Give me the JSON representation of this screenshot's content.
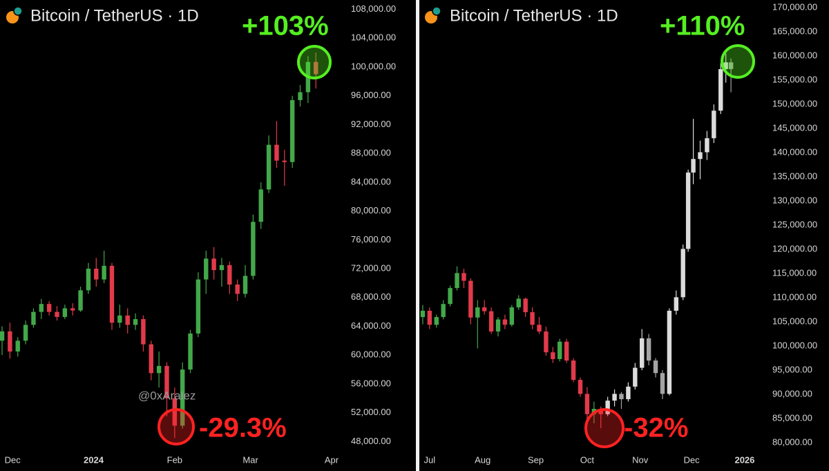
{
  "chart_data": [
    {
      "type": "candlestick",
      "title": "Bitcoin / TetherUS · 1D",
      "watermark": "@0xAralez",
      "annotations": [
        {
          "text": "+103%",
          "color": "#55ee22"
        },
        {
          "text": "-29.3%",
          "color": "#ff2222"
        }
      ],
      "xlim": [
        -4.8,
        127.3
      ],
      "xticks": [
        {
          "value": 0,
          "label": "Dec"
        },
        {
          "value": 31,
          "label": "2024"
        },
        {
          "value": 62,
          "label": "Feb"
        },
        {
          "value": 91,
          "label": "Mar"
        },
        {
          "value": 122,
          "label": "Apr"
        }
      ],
      "ylim": [
        46500,
        109300
      ],
      "yticks": [
        {
          "value": 48000,
          "label": "48,000.00"
        },
        {
          "value": 52000,
          "label": "52,000.00"
        },
        {
          "value": 56000,
          "label": "56,000.00"
        },
        {
          "value": 60000,
          "label": "60,000.00"
        },
        {
          "value": 64000,
          "label": "64,000.00"
        },
        {
          "value": 68000,
          "label": "68,000.00"
        },
        {
          "value": 72000,
          "label": "72,000.00"
        },
        {
          "value": 76000,
          "label": "76,000.00"
        },
        {
          "value": 80000,
          "label": "80,000.00"
        },
        {
          "value": 84000,
          "label": "84,000.00"
        },
        {
          "value": 88000,
          "label": "88,000.00"
        },
        {
          "value": 92000,
          "label": "92,000.00"
        },
        {
          "value": 96000,
          "label": "96,000.00"
        },
        {
          "value": 100000,
          "label": "100,000.00"
        },
        {
          "value": 104000,
          "label": "104,000.00"
        },
        {
          "value": 108000,
          "label": "108,000.00"
        }
      ],
      "series": [
        {
          "up_color": "#43a84a",
          "down_color": "#e23a4b",
          "x": [
            -4,
            -1,
            2,
            5,
            8,
            11,
            14,
            17,
            20,
            23,
            26,
            29,
            32,
            35,
            38,
            41,
            44,
            47,
            50,
            53,
            56,
            59,
            62,
            65,
            68,
            71,
            74,
            77,
            80,
            83,
            86,
            89,
            92,
            95,
            98,
            101,
            104,
            107,
            110,
            113,
            116
          ],
          "open": [
            62000,
            63300,
            60500,
            62000,
            64200,
            66000,
            67100,
            66000,
            65300,
            66500,
            66200,
            69000,
            72000,
            70500,
            72400,
            64500,
            65500,
            64200,
            65000,
            61500,
            57500,
            58500,
            54000,
            50200,
            58000,
            63000,
            70500,
            73400,
            71800,
            72500,
            69800,
            68500,
            71000,
            78500,
            83000,
            89200,
            87000,
            86800,
            95400,
            96500,
            100700
          ],
          "high": [
            64000,
            64500,
            62500,
            64800,
            66500,
            67800,
            67500,
            66800,
            67000,
            67200,
            69500,
            72800,
            73500,
            74500,
            72800,
            67000,
            66500,
            65800,
            65500,
            62000,
            60500,
            59000,
            55500,
            59000,
            63500,
            71500,
            74500,
            75000,
            73500,
            73000,
            70500,
            72500,
            79500,
            84000,
            90500,
            92500,
            88500,
            96000,
            97500,
            101500,
            102000
          ],
          "low": [
            60000,
            59500,
            59800,
            61500,
            63800,
            65000,
            65500,
            64800,
            65000,
            65500,
            66000,
            68500,
            69500,
            70000,
            63500,
            63800,
            63000,
            63500,
            60500,
            56500,
            55500,
            51500,
            48500,
            49800,
            57500,
            62500,
            68500,
            70500,
            69500,
            68500,
            67500,
            68000,
            70500,
            77500,
            82500,
            86000,
            83500,
            86000,
            94500,
            95000,
            97000
          ],
          "close": [
            63300,
            60500,
            62000,
            64200,
            66000,
            67100,
            66000,
            65300,
            66500,
            66200,
            69000,
            72000,
            70500,
            72400,
            64500,
            65500,
            64200,
            65000,
            61500,
            57500,
            58500,
            54000,
            50200,
            58000,
            63000,
            70500,
            73400,
            71800,
            72500,
            69800,
            68500,
            71000,
            78500,
            83000,
            89200,
            87000,
            86800,
            95400,
            96500,
            100700,
            99000
          ]
        }
      ]
    },
    {
      "type": "candlestick",
      "title": "Bitcoin / TetherUS · 1D",
      "annotations": [
        {
          "text": "+110%",
          "color": "#55ee22"
        },
        {
          "text": "-32%",
          "color": "#ff2222"
        }
      ],
      "xlim": [
        -6,
        192.9
      ],
      "xticks": [
        {
          "value": 0,
          "label": "Jul"
        },
        {
          "value": 31,
          "label": "Aug"
        },
        {
          "value": 62,
          "label": "Sep"
        },
        {
          "value": 92,
          "label": "Oct"
        },
        {
          "value": 123,
          "label": "Nov"
        },
        {
          "value": 153,
          "label": "Dec"
        },
        {
          "value": 184,
          "label": "2026"
        }
      ],
      "ylim": [
        78000,
        171600
      ],
      "yticks": [
        {
          "value": 80000,
          "label": "80,000.00"
        },
        {
          "value": 85000,
          "label": "85,000.00"
        },
        {
          "value": 90000,
          "label": "90,000.00"
        },
        {
          "value": 95000,
          "label": "95,000.00"
        },
        {
          "value": 100000,
          "label": "100,000.00"
        },
        {
          "value": 105000,
          "label": "105,000.00"
        },
        {
          "value": 110000,
          "label": "110,000.00"
        },
        {
          "value": 115000,
          "label": "115,000.00"
        },
        {
          "value": 120000,
          "label": "120,000.00"
        },
        {
          "value": 125000,
          "label": "125,000.00"
        },
        {
          "value": 130000,
          "label": "130,000.00"
        },
        {
          "value": 135000,
          "label": "135,000.00"
        },
        {
          "value": 140000,
          "label": "140,000.00"
        },
        {
          "value": 145000,
          "label": "145,000.00"
        },
        {
          "value": 150000,
          "label": "150,000.00"
        },
        {
          "value": 155000,
          "label": "155,000.00"
        },
        {
          "value": 160000,
          "label": "160,000.00"
        },
        {
          "value": 165000,
          "label": "165,000.00"
        },
        {
          "value": 170000,
          "label": "170,000.00"
        }
      ],
      "series": [
        {
          "up_color": "#43a84a",
          "down_color": "#e23a4b",
          "x": [
            -4,
            0,
            4,
            8,
            12,
            16,
            20,
            24,
            28,
            32,
            36,
            40,
            44,
            48,
            52,
            56,
            60,
            64,
            68,
            72,
            76,
            80,
            84,
            88,
            92,
            96,
            100
          ],
          "open": [
            106000,
            107300,
            104400,
            106000,
            108700,
            112000,
            115100,
            113500,
            105900,
            108000,
            107200,
            103000,
            105500,
            104400,
            108000,
            109800,
            107000,
            104400,
            103000,
            98700,
            97300,
            100900,
            97000,
            93000,
            90100,
            85900,
            87000
          ],
          "high": [
            108500,
            108000,
            106500,
            109500,
            112500,
            116500,
            116000,
            114000,
            109500,
            109500,
            108000,
            106000,
            106500,
            108500,
            110500,
            110000,
            108000,
            106000,
            104000,
            99800,
            101500,
            101500,
            97500,
            93500,
            91500,
            88500,
            87500
          ],
          "low": [
            104500,
            103500,
            103800,
            105500,
            108200,
            111500,
            112000,
            104500,
            99500,
            106500,
            102500,
            102000,
            103500,
            104000,
            107500,
            106000,
            103500,
            102500,
            98000,
            96500,
            96800,
            96500,
            92500,
            89500,
            85000,
            84000,
            83000
          ],
          "close": [
            107300,
            104400,
            106000,
            108700,
            112000,
            115100,
            113500,
            105900,
            108000,
            107200,
            103000,
            105500,
            104400,
            108000,
            109800,
            107000,
            104400,
            103000,
            98700,
            97300,
            100900,
            97000,
            93000,
            90100,
            85900,
            87000,
            85900
          ]
        },
        {
          "up_color": "#dcdcdc",
          "down_color": "#a4a4a4",
          "x": [
            104,
            108,
            112,
            116,
            120,
            124,
            128,
            132,
            136,
            140,
            144,
            148,
            151,
            154,
            158,
            162,
            166,
            170,
            173,
            176
          ],
          "open": [
            85900,
            88700,
            90100,
            89000,
            91600,
            95500,
            101600,
            97000,
            94400,
            90100,
            107300,
            110100,
            120100,
            135900,
            138700,
            140100,
            143000,
            148700,
            157300,
            158700
          ],
          "high": [
            89500,
            91000,
            90500,
            92500,
            96500,
            103500,
            102500,
            97500,
            95000,
            107800,
            111500,
            121000,
            136500,
            147000,
            142500,
            144500,
            150000,
            158500,
            160500,
            159500
          ],
          "low": [
            85500,
            87500,
            87000,
            88500,
            91000,
            95000,
            96000,
            93500,
            89000,
            89800,
            106500,
            109500,
            119500,
            133500,
            134500,
            138500,
            142000,
            148000,
            154500,
            152500
          ],
          "close": [
            88700,
            90100,
            89000,
            91600,
            95500,
            101600,
            97000,
            94400,
            90100,
            107300,
            110100,
            120100,
            135900,
            138700,
            140100,
            143000,
            148700,
            157300,
            158700,
            157300
          ]
        }
      ]
    }
  ]
}
